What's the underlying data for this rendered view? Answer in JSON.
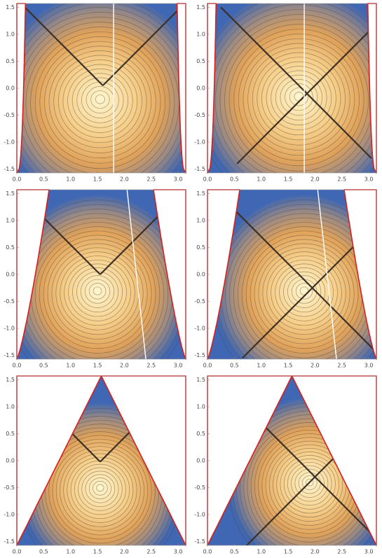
{
  "chart_data": [
    {
      "type": "contour",
      "boundary_color": "#d81e1e",
      "xlim": [
        0,
        3.14159
      ],
      "ylim": [
        -1.5708,
        1.5708
      ],
      "xticks": [
        {
          "value": 0,
          "label": "0.0"
        },
        0.5,
        {
          "value": 1,
          "label": "1.0"
        },
        1.5,
        {
          "value": 2,
          "label": "2.0"
        },
        2.5,
        {
          "value": 3,
          "label": "3.0"
        }
      ],
      "yticks": [
        -1.5,
        {
          "value": -1,
          "label": "-1.0"
        },
        -0.5,
        {
          "value": 0,
          "label": "0.0"
        },
        0.5,
        {
          "value": 1,
          "label": "1.0"
        },
        1.5
      ]
    },
    {
      "type": "contour",
      "boundary_color": "#d81e1e",
      "xlim": [
        0,
        3.14159
      ],
      "ylim": [
        -1.5708,
        1.5708
      ],
      "xticks": [
        {
          "value": 0,
          "label": "0.0"
        },
        0.5,
        {
          "value": 1,
          "label": "1.0"
        },
        1.5,
        {
          "value": 2,
          "label": "2.0"
        },
        2.5,
        {
          "value": 3,
          "label": "3.0"
        }
      ],
      "yticks": [
        -1.5,
        {
          "value": -1,
          "label": "-1.0"
        },
        -0.5,
        {
          "value": 0,
          "label": "0.0"
        },
        0.5,
        {
          "value": 1,
          "label": "1.0"
        },
        1.5
      ]
    },
    {
      "type": "contour",
      "boundary_color": "#d81e1e",
      "xlim": [
        0,
        3.14159
      ],
      "ylim": [
        -1.5708,
        1.5708
      ],
      "xticks": [
        {
          "value": 0,
          "label": "0.0"
        },
        0.5,
        {
          "value": 1,
          "label": "1.0"
        },
        1.5,
        {
          "value": 2,
          "label": "2.0"
        },
        2.5,
        {
          "value": 3,
          "label": "3.0"
        }
      ],
      "yticks": [
        -1.5,
        {
          "value": -1,
          "label": "-1.0"
        },
        -0.5,
        {
          "value": 0,
          "label": "0.0"
        },
        0.5,
        {
          "value": 1,
          "label": "1.0"
        },
        1.5
      ]
    },
    {
      "type": "contour",
      "boundary_color": "#d81e1e",
      "xlim": [
        0,
        3.14159
      ],
      "ylim": [
        -1.5708,
        1.5708
      ],
      "xticks": [
        {
          "value": 0,
          "label": "0.0"
        },
        0.5,
        {
          "value": 1,
          "label": "1.0"
        },
        1.5,
        {
          "value": 2,
          "label": "2.0"
        },
        2.5,
        {
          "value": 3,
          "label": "3.0"
        }
      ],
      "yticks": [
        -1.5,
        {
          "value": -1,
          "label": "-1.0"
        },
        -0.5,
        {
          "value": 0,
          "label": "0.0"
        },
        0.5,
        {
          "value": 1,
          "label": "1.0"
        },
        1.5
      ]
    },
    {
      "type": "contour",
      "boundary_color": "#d81e1e",
      "xlim": [
        0,
        3.14159
      ],
      "ylim": [
        -1.5708,
        1.5708
      ],
      "xticks": [
        {
          "value": 0,
          "label": "0.0"
        },
        0.5,
        {
          "value": 1,
          "label": "1.0"
        },
        1.5,
        {
          "value": 2,
          "label": "2.0"
        },
        2.5,
        {
          "value": 3,
          "label": "3.0"
        }
      ],
      "yticks": [
        -1.5,
        {
          "value": -1,
          "label": "-1.0"
        },
        -0.5,
        {
          "value": 0,
          "label": "0.0"
        },
        0.5,
        {
          "value": 1,
          "label": "1.0"
        },
        1.5
      ]
    },
    {
      "type": "contour",
      "boundary_color": "#d81e1e",
      "xlim": [
        0,
        3.14159
      ],
      "ylim": [
        -1.5708,
        1.5708
      ],
      "xticks": [
        {
          "value": 0,
          "label": "0.0"
        },
        0.5,
        {
          "value": 1,
          "label": "1.0"
        },
        1.5,
        {
          "value": 2,
          "label": "2.0"
        },
        2.5,
        {
          "value": 3,
          "label": "3.0"
        }
      ],
      "yticks": [
        -1.5,
        {
          "value": -1,
          "label": "-1.0"
        },
        -0.5,
        {
          "value": 0,
          "label": "0.0"
        },
        0.5,
        {
          "value": 1,
          "label": "1.0"
        },
        1.5
      ]
    }
  ]
}
